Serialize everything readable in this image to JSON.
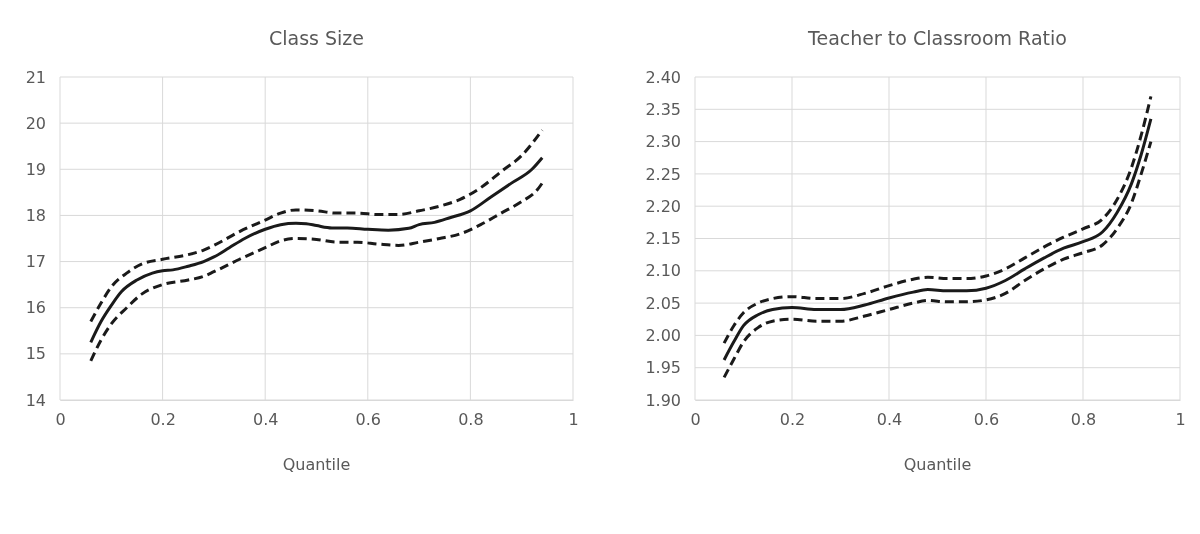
{
  "chart_data": [
    {
      "type": "line",
      "title": "Class Size",
      "xlabel": "Quantile",
      "xlim": [
        0,
        1
      ],
      "xticks": [
        0,
        0.2,
        0.4,
        0.6,
        0.8,
        1
      ],
      "ylim": [
        14,
        21
      ],
      "yticks": [
        14,
        15,
        16,
        17,
        18,
        19,
        20,
        21
      ],
      "grid": true,
      "marker": "none",
      "series": [
        {
          "color": "#1a1a1a",
          "line_style": "solid",
          "x": [
            0.06,
            0.08,
            0.1,
            0.12,
            0.15,
            0.18,
            0.2,
            0.22,
            0.25,
            0.28,
            0.3,
            0.33,
            0.36,
            0.4,
            0.43,
            0.46,
            0.48,
            0.5,
            0.53,
            0.56,
            0.6,
            0.64,
            0.68,
            0.7,
            0.73,
            0.76,
            0.8,
            0.84,
            0.88,
            0.92,
            0.94
          ],
          "values": [
            15.25,
            15.7,
            16.05,
            16.35,
            16.6,
            16.75,
            16.8,
            16.82,
            16.9,
            17.0,
            17.1,
            17.3,
            17.5,
            17.7,
            17.8,
            17.83,
            17.82,
            17.78,
            17.73,
            17.73,
            17.7,
            17.68,
            17.72,
            17.8,
            17.85,
            17.95,
            18.1,
            18.4,
            18.7,
            19.0,
            19.25
          ]
        },
        {
          "color": "#1a1a1a",
          "line_style": "dashed",
          "x": [
            0.06,
            0.08,
            0.1,
            0.13,
            0.16,
            0.2,
            0.25,
            0.28,
            0.3,
            0.35,
            0.4,
            0.43,
            0.46,
            0.5,
            0.54,
            0.58,
            0.62,
            0.66,
            0.7,
            0.74,
            0.78,
            0.82,
            0.86,
            0.9,
            0.94
          ],
          "values": [
            15.7,
            16.1,
            16.45,
            16.75,
            16.95,
            17.05,
            17.15,
            17.25,
            17.35,
            17.65,
            17.9,
            18.05,
            18.12,
            18.1,
            18.05,
            18.05,
            18.02,
            18.02,
            18.1,
            18.2,
            18.35,
            18.6,
            18.95,
            19.3,
            19.85
          ]
        },
        {
          "color": "#1a1a1a",
          "line_style": "dashed",
          "x": [
            0.06,
            0.08,
            0.1,
            0.13,
            0.16,
            0.2,
            0.25,
            0.28,
            0.3,
            0.35,
            0.4,
            0.43,
            0.46,
            0.5,
            0.54,
            0.58,
            0.62,
            0.66,
            0.7,
            0.74,
            0.78,
            0.82,
            0.86,
            0.9,
            0.93,
            0.94
          ],
          "values": [
            14.85,
            15.3,
            15.65,
            16.0,
            16.3,
            16.5,
            16.6,
            16.68,
            16.78,
            17.05,
            17.3,
            17.45,
            17.5,
            17.48,
            17.42,
            17.42,
            17.38,
            17.35,
            17.42,
            17.5,
            17.6,
            17.8,
            18.05,
            18.3,
            18.55,
            18.7
          ]
        }
      ]
    },
    {
      "type": "line",
      "title": "Teacher to Classroom Ratio",
      "xlabel": "Quantile",
      "xlim": [
        0,
        1
      ],
      "xticks": [
        0,
        0.2,
        0.4,
        0.6,
        0.8,
        1
      ],
      "ylim": [
        1.9,
        2.4
      ],
      "yticks": [
        {
          "value": 1.9,
          "label": "1.90"
        },
        {
          "value": 1.95,
          "label": "1.95"
        },
        {
          "value": 2.0,
          "label": "2.00"
        },
        {
          "value": 2.05,
          "label": "2.05"
        },
        {
          "value": 2.1,
          "label": "2.10"
        },
        {
          "value": 2.15,
          "label": "2.15"
        },
        {
          "value": 2.2,
          "label": "2.20"
        },
        {
          "value": 2.25,
          "label": "2.25"
        },
        {
          "value": 2.3,
          "label": "2.30"
        },
        {
          "value": 2.35,
          "label": "2.35"
        },
        {
          "value": 2.4,
          "label": "2.40"
        }
      ],
      "grid": true,
      "marker": "none",
      "series": [
        {
          "color": "#1a1a1a",
          "line_style": "solid",
          "x": [
            0.06,
            0.08,
            0.1,
            0.13,
            0.16,
            0.2,
            0.25,
            0.3,
            0.35,
            0.4,
            0.45,
            0.48,
            0.52,
            0.56,
            0.6,
            0.64,
            0.68,
            0.72,
            0.76,
            0.8,
            0.84,
            0.87,
            0.9,
            0.92,
            0.94
          ],
          "values": [
            1.962,
            1.99,
            2.015,
            2.032,
            2.04,
            2.043,
            2.04,
            2.04,
            2.047,
            2.058,
            2.067,
            2.071,
            2.069,
            2.069,
            2.073,
            2.085,
            2.103,
            2.12,
            2.135,
            2.145,
            2.16,
            2.19,
            2.235,
            2.28,
            2.335
          ]
        },
        {
          "color": "#1a1a1a",
          "line_style": "dashed",
          "x": [
            0.06,
            0.08,
            0.1,
            0.13,
            0.16,
            0.2,
            0.25,
            0.3,
            0.35,
            0.4,
            0.45,
            0.48,
            0.52,
            0.56,
            0.6,
            0.64,
            0.68,
            0.72,
            0.76,
            0.8,
            0.84,
            0.87,
            0.9,
            0.92,
            0.94
          ],
          "values": [
            1.988,
            2.015,
            2.035,
            2.05,
            2.057,
            2.06,
            2.057,
            2.057,
            2.065,
            2.077,
            2.087,
            2.09,
            2.088,
            2.088,
            2.092,
            2.103,
            2.12,
            2.137,
            2.152,
            2.165,
            2.18,
            2.21,
            2.26,
            2.31,
            2.37
          ]
        },
        {
          "color": "#1a1a1a",
          "line_style": "dashed",
          "x": [
            0.06,
            0.08,
            0.1,
            0.13,
            0.16,
            0.2,
            0.25,
            0.3,
            0.35,
            0.4,
            0.45,
            0.48,
            0.52,
            0.56,
            0.6,
            0.64,
            0.68,
            0.72,
            0.76,
            0.8,
            0.84,
            0.87,
            0.9,
            0.92,
            0.94
          ],
          "values": [
            1.935,
            1.963,
            1.99,
            2.012,
            2.022,
            2.025,
            2.022,
            2.022,
            2.03,
            2.04,
            2.05,
            2.054,
            2.052,
            2.052,
            2.055,
            2.065,
            2.085,
            2.103,
            2.118,
            2.128,
            2.14,
            2.165,
            2.205,
            2.25,
            2.3
          ]
        }
      ]
    }
  ]
}
